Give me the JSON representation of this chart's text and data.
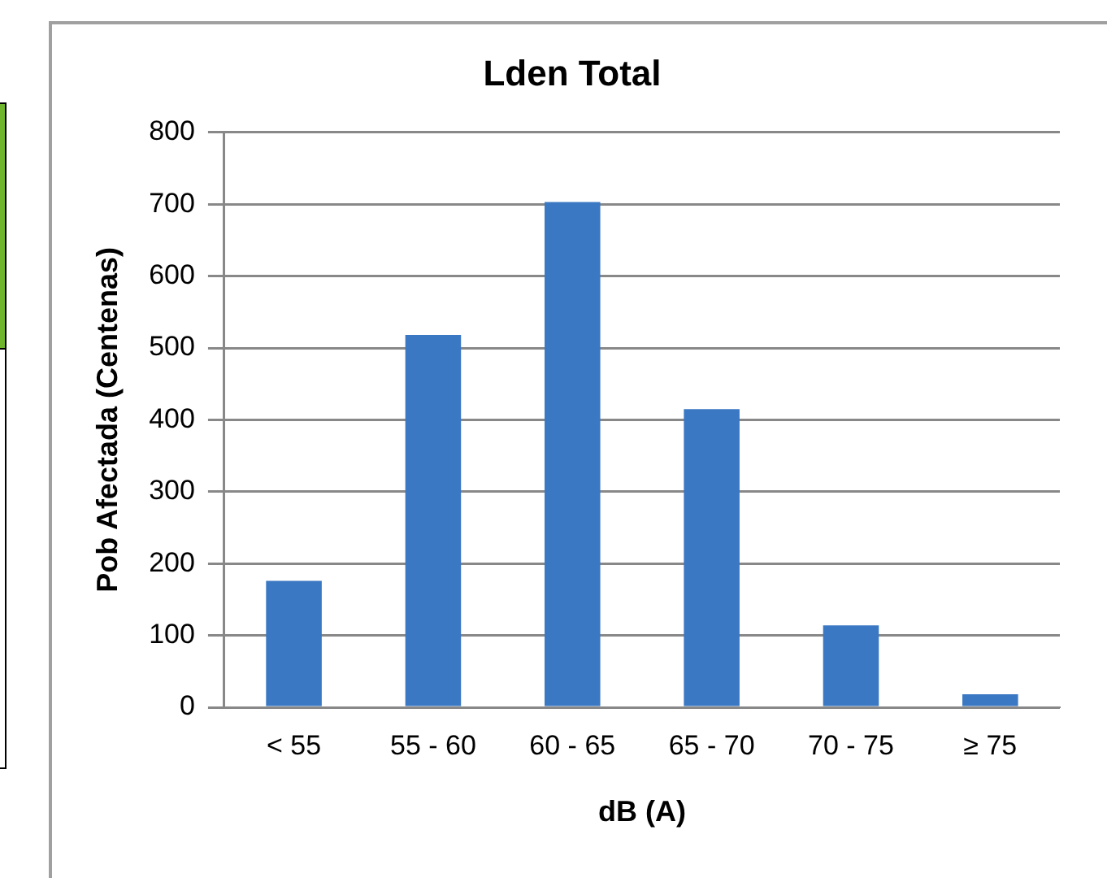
{
  "chart_data": {
    "type": "bar",
    "title": "Lden Total",
    "xlabel": "dB (A)",
    "ylabel": "Pob Afectada (Centenas)",
    "categories": [
      "< 55",
      "55 - 60",
      "60 - 65",
      "65 - 70",
      "70 - 75",
      "≥ 75"
    ],
    "values": [
      176,
      518,
      703,
      415,
      114,
      18
    ],
    "color": "#3a78c3",
    "ylim": [
      0,
      800
    ],
    "yticks": [
      0,
      100,
      200,
      300,
      400,
      500,
      600,
      700,
      800
    ],
    "grid": "y",
    "legend": false
  }
}
